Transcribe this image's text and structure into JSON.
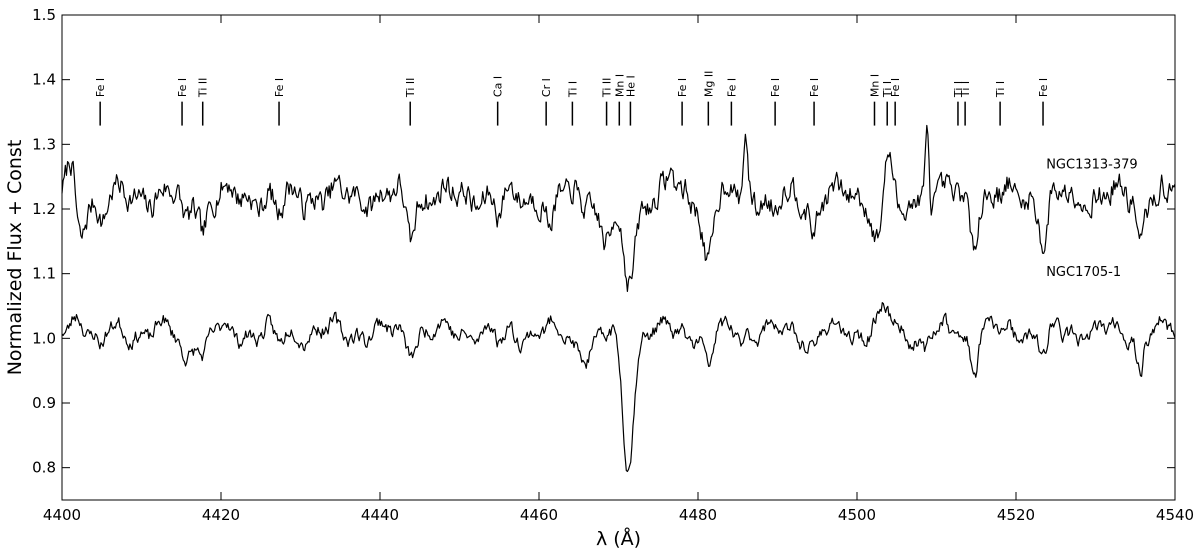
{
  "chart_data": {
    "type": "line",
    "xlabel": "λ (Å)",
    "ylabel": "Normalized Flux + Const",
    "xlim": [
      4400,
      4540
    ],
    "ylim": [
      0.75,
      1.5
    ],
    "xticks": [
      4400,
      4420,
      4440,
      4460,
      4480,
      4500,
      4520,
      4540
    ],
    "yticks": [
      0.8,
      0.9,
      1.0,
      1.1,
      1.2,
      1.3,
      1.4,
      1.5
    ],
    "series": [
      {
        "name": "NGC1313-379",
        "color": "#000000",
        "base": 1.22,
        "noise": 0.028,
        "features": [
          [
            4401.0,
            0.05,
            0.5
          ],
          [
            4402.3,
            -0.06,
            0.5
          ],
          [
            4405.0,
            -0.04,
            0.5
          ],
          [
            4415.5,
            -0.04,
            0.5
          ],
          [
            4417.8,
            -0.05,
            0.5
          ],
          [
            4427.2,
            -0.03,
            0.5
          ],
          [
            4443.8,
            -0.06,
            0.5
          ],
          [
            4455.0,
            -0.03,
            0.5
          ],
          [
            4461.5,
            -0.05,
            0.5
          ],
          [
            4468.5,
            -0.07,
            0.9
          ],
          [
            4471.3,
            -0.13,
            0.8
          ],
          [
            4476.5,
            0.03,
            0.5
          ],
          [
            4481.2,
            -0.1,
            0.6
          ],
          [
            4486.0,
            0.1,
            0.25
          ],
          [
            4489.5,
            -0.03,
            0.5
          ],
          [
            4494.5,
            -0.05,
            0.5
          ],
          [
            4502.5,
            -0.07,
            0.5
          ],
          [
            4504.0,
            0.07,
            0.4
          ],
          [
            4505.5,
            -0.04,
            0.5
          ],
          [
            4508.8,
            0.12,
            0.2
          ],
          [
            4514.6,
            -0.07,
            0.4
          ],
          [
            4523.5,
            -0.07,
            0.5
          ],
          [
            4535.6,
            -0.07,
            0.4
          ]
        ],
        "seed": 7
      },
      {
        "name": "NGC1705-1",
        "color": "#000000",
        "base": 1.01,
        "noise": 0.016,
        "features": [
          [
            4402.0,
            0.03,
            0.8
          ],
          [
            4404.8,
            -0.03,
            0.5
          ],
          [
            4415.5,
            -0.04,
            0.6
          ],
          [
            4417.8,
            -0.04,
            0.5
          ],
          [
            4427.2,
            -0.02,
            0.6
          ],
          [
            4443.8,
            -0.02,
            0.6
          ],
          [
            4455.0,
            -0.02,
            0.6
          ],
          [
            4466.0,
            -0.03,
            1.5
          ],
          [
            4471.2,
            -0.2,
            0.7
          ],
          [
            4481.3,
            -0.06,
            0.5
          ],
          [
            4494.5,
            -0.03,
            0.5
          ],
          [
            4503.5,
            0.03,
            0.8
          ],
          [
            4508.5,
            -0.03,
            0.5
          ],
          [
            4514.7,
            -0.06,
            0.4
          ],
          [
            4523.5,
            -0.04,
            0.5
          ],
          [
            4535.6,
            -0.06,
            0.4
          ]
        ],
        "seed": 23
      }
    ],
    "annotations": {
      "series_labels": [
        {
          "text": "NGC1313-379",
          "x": 4523.8,
          "y": 1.27
        },
        {
          "text": "NGC1705-1",
          "x": 4523.8,
          "y": 1.104
        }
      ],
      "line_ids": [
        {
          "label": "Fe I",
          "x": 4404.8
        },
        {
          "label": "Fe I",
          "x": 4415.1
        },
        {
          "label": "Ti II",
          "x": 4417.7
        },
        {
          "label": "Fe I",
          "x": 4427.3
        },
        {
          "label": "Ti II",
          "x": 4443.8
        },
        {
          "label": "Ca I",
          "x": 4454.8
        },
        {
          "label": "Cr I",
          "x": 4460.9
        },
        {
          "label": "Ti I",
          "x": 4464.2
        },
        {
          "label": "Ti II",
          "x": 4468.5
        },
        {
          "label": "Mn I",
          "x": 4470.1
        },
        {
          "label": "He I",
          "x": 4471.5
        },
        {
          "label": "Fe I",
          "x": 4478.0
        },
        {
          "label": "Mg II",
          "x": 4481.3
        },
        {
          "label": "Fe I",
          "x": 4484.2
        },
        {
          "label": "Fe I",
          "x": 4489.7
        },
        {
          "label": "Fe I",
          "x": 4494.6
        },
        {
          "label": "Mn I",
          "x": 4502.2
        },
        {
          "label": "Ti I",
          "x": 4503.8
        },
        {
          "label": "Fe I",
          "x": 4504.8
        },
        {
          "label": "Ti I",
          "x": 4512.7
        },
        {
          "label": "Ti I",
          "x": 4513.6
        },
        {
          "label": "Ti I",
          "x": 4518.0
        },
        {
          "label": "Fe I",
          "x": 4523.4
        }
      ],
      "line_marker_y": [
        1.329,
        1.366
      ]
    }
  }
}
